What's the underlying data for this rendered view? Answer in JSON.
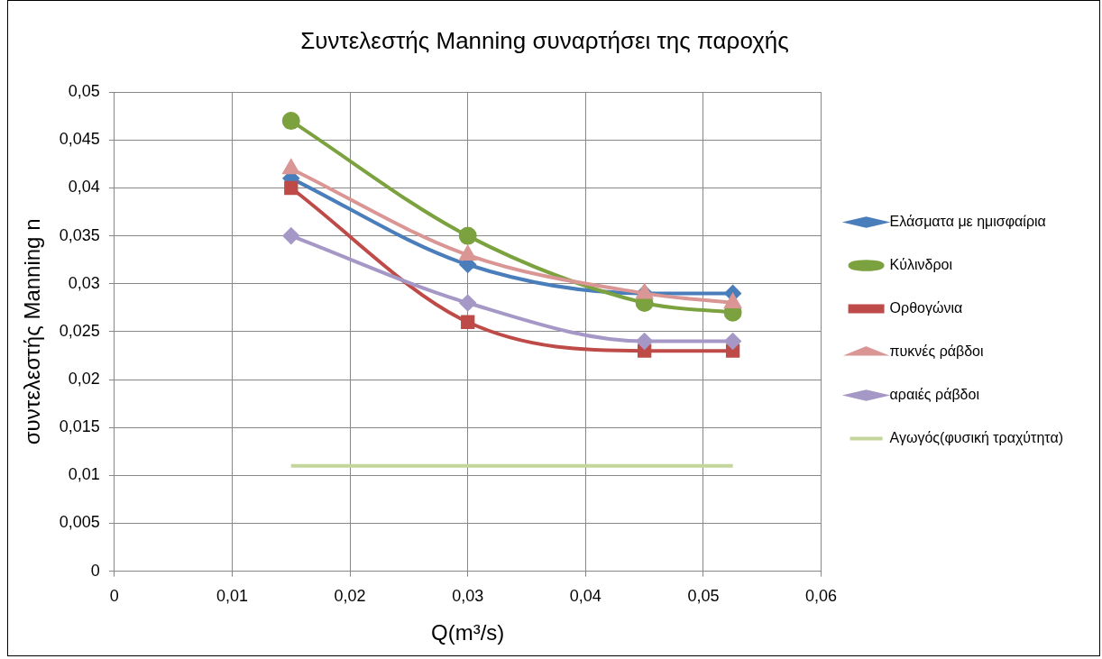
{
  "chart_data": {
    "type": "line",
    "title": "Συντελεστής Manning συναρτήσει της παροχής",
    "xlabel": "Q(m³/s)",
    "ylabel": "συντελεστής Manning n",
    "x": [
      0.015,
      0.03,
      0.045,
      0.0525
    ],
    "series": [
      {
        "name": "Ελάσματα με ημισφαίρια",
        "color": "#4a7ebb",
        "marker": "diamond",
        "values": [
          0.041,
          0.032,
          0.029,
          0.029
        ]
      },
      {
        "name": "Κύλινδροι",
        "color": "#7ba23f",
        "marker": "circle",
        "values": [
          0.047,
          0.035,
          0.028,
          0.027
        ]
      },
      {
        "name": "Ορθογώνια",
        "color": "#be4b48",
        "marker": "square",
        "values": [
          0.04,
          0.026,
          0.023,
          0.023
        ]
      },
      {
        "name": "πυκνές ράβδοι",
        "color": "#d99694",
        "marker": "triangle",
        "values": [
          0.042,
          0.033,
          0.029,
          0.028
        ]
      },
      {
        "name": "αραιές ράβδοι",
        "color": "#a598c6",
        "marker": "diamond",
        "values": [
          0.035,
          0.028,
          0.024,
          0.024
        ]
      },
      {
        "name": "Αγωγός(φυσική τραχύτητα)",
        "color": "#c3d69b",
        "marker": "none",
        "values": [
          0.011,
          0.011,
          0.011,
          0.011
        ]
      }
    ],
    "xlim": [
      0,
      0.06
    ],
    "xticks": [
      0,
      {
        "value": 0.01,
        "label": "0,01"
      },
      {
        "value": 0.02,
        "label": "0,02"
      },
      {
        "value": 0.03,
        "label": "0,03"
      },
      {
        "value": 0.04,
        "label": "0,04"
      },
      {
        "value": 0.05,
        "label": "0,05"
      },
      {
        "value": 0.06,
        "label": "0,06"
      }
    ],
    "ylim": [
      0,
      0.05
    ],
    "yticks": [
      0,
      {
        "value": 0.005,
        "label": "0,005"
      },
      {
        "value": 0.01,
        "label": "0,01"
      },
      {
        "value": 0.015,
        "label": "0,015"
      },
      {
        "value": 0.02,
        "label": "0,02"
      },
      {
        "value": 0.025,
        "label": "0,025"
      },
      {
        "value": 0.03,
        "label": "0,03"
      },
      {
        "value": 0.035,
        "label": "0,035"
      },
      {
        "value": 0.04,
        "label": "0,04"
      },
      {
        "value": 0.045,
        "label": "0,045"
      },
      {
        "value": 0.05,
        "label": "0,05"
      }
    ],
    "grid": true,
    "legend": "right"
  }
}
